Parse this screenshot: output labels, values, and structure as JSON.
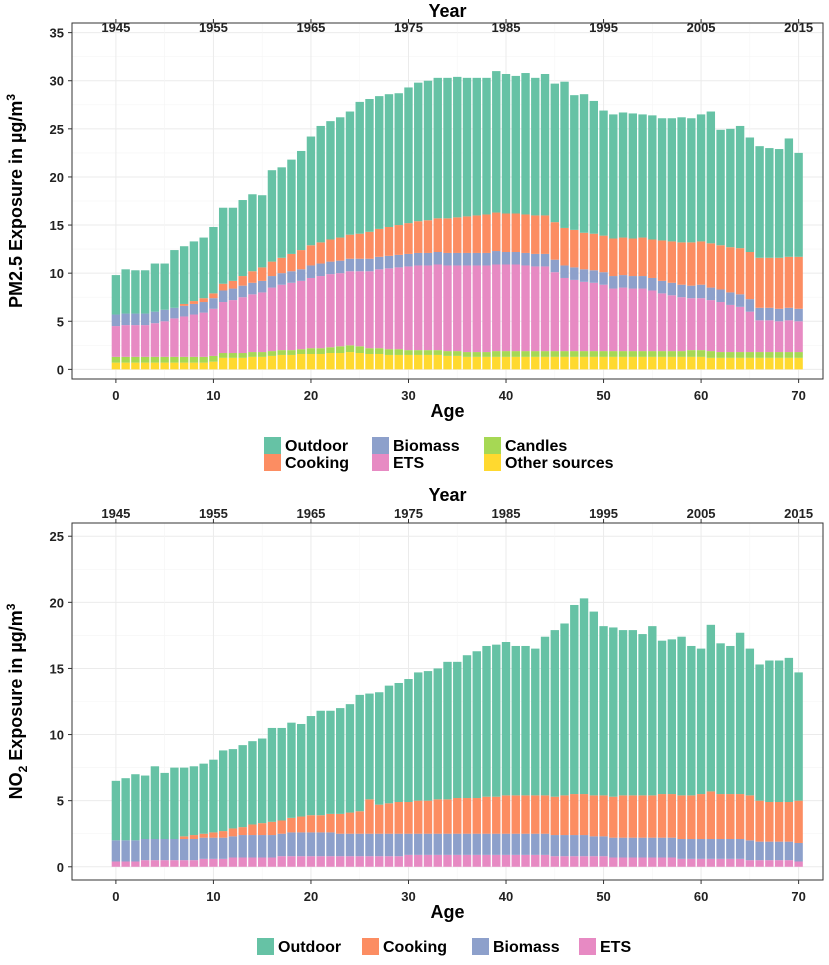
{
  "legend_pm25": [
    {
      "label": "Outdoor",
      "color": "#66C2A5"
    },
    {
      "label": "Cooking",
      "color": "#FC8D62"
    },
    {
      "label": "Biomass",
      "color": "#8DA0CB"
    },
    {
      "label": "ETS",
      "color": "#E78AC3"
    },
    {
      "label": "Candles",
      "color": "#A6D854"
    },
    {
      "label": "Other sources",
      "color": "#FFD92F"
    }
  ],
  "legend_no2": [
    {
      "label": "Outdoor",
      "color": "#66C2A5"
    },
    {
      "label": "Cooking",
      "color": "#FC8D62"
    },
    {
      "label": "Biomass",
      "color": "#8DA0CB"
    },
    {
      "label": "ETS",
      "color": "#E78AC3"
    }
  ],
  "chart_data": [
    {
      "type": "bar",
      "stacked": true,
      "title": "",
      "xlabel": "Age",
      "ylabel": "PM2.5 Exposure in µg/m3",
      "ylabel_prefix": "PM2.5 Exposure in µg/m",
      "ylabel_sup": "3",
      "xlabel_top": "Year",
      "x": [
        0,
        1,
        2,
        3,
        4,
        5,
        6,
        7,
        8,
        9,
        10,
        11,
        12,
        13,
        14,
        15,
        16,
        17,
        18,
        19,
        20,
        21,
        22,
        23,
        24,
        25,
        26,
        27,
        28,
        29,
        30,
        31,
        32,
        33,
        34,
        35,
        36,
        37,
        38,
        39,
        40,
        41,
        42,
        43,
        44,
        45,
        46,
        47,
        48,
        49,
        50,
        51,
        52,
        53,
        54,
        55,
        56,
        57,
        58,
        59,
        60,
        61,
        62,
        63,
        64,
        65,
        66,
        67,
        68,
        69,
        70
      ],
      "x_ticks": [
        0,
        10,
        20,
        30,
        40,
        50,
        60,
        70
      ],
      "top_ticks": [
        "1945",
        "1955",
        "1965",
        "1975",
        "1985",
        "1995",
        "2005",
        "2015"
      ],
      "ylim": [
        -1,
        36
      ],
      "y_ticks": [
        0,
        5,
        10,
        15,
        20,
        25,
        30,
        35
      ],
      "series": [
        {
          "name": "Other sources",
          "values": [
            0.7,
            0.7,
            0.7,
            0.7,
            0.7,
            0.7,
            0.7,
            0.7,
            0.7,
            0.7,
            0.8,
            1.2,
            1.2,
            1.2,
            1.3,
            1.3,
            1.4,
            1.5,
            1.5,
            1.6,
            1.6,
            1.6,
            1.7,
            1.7,
            1.8,
            1.7,
            1.6,
            1.6,
            1.5,
            1.5,
            1.5,
            1.5,
            1.5,
            1.5,
            1.4,
            1.4,
            1.3,
            1.3,
            1.3,
            1.3,
            1.3,
            1.3,
            1.3,
            1.3,
            1.3,
            1.3,
            1.3,
            1.3,
            1.3,
            1.3,
            1.3,
            1.3,
            1.3,
            1.3,
            1.3,
            1.3,
            1.3,
            1.3,
            1.3,
            1.3,
            1.3,
            1.2,
            1.2,
            1.2,
            1.2,
            1.2,
            1.2,
            1.2,
            1.2,
            1.2,
            1.2
          ]
        },
        {
          "name": "Candles",
          "values": [
            0.6,
            0.6,
            0.6,
            0.6,
            0.6,
            0.6,
            0.6,
            0.6,
            0.6,
            0.6,
            0.6,
            0.5,
            0.5,
            0.5,
            0.5,
            0.5,
            0.5,
            0.5,
            0.5,
            0.5,
            0.6,
            0.6,
            0.6,
            0.7,
            0.7,
            0.7,
            0.6,
            0.6,
            0.6,
            0.6,
            0.5,
            0.5,
            0.5,
            0.5,
            0.5,
            0.5,
            0.5,
            0.5,
            0.5,
            0.6,
            0.6,
            0.6,
            0.6,
            0.6,
            0.6,
            0.6,
            0.6,
            0.6,
            0.6,
            0.6,
            0.6,
            0.6,
            0.6,
            0.6,
            0.6,
            0.6,
            0.6,
            0.6,
            0.6,
            0.7,
            0.7,
            0.7,
            0.6,
            0.6,
            0.6,
            0.6,
            0.6,
            0.6,
            0.6,
            0.6,
            0.6
          ]
        },
        {
          "name": "ETS",
          "values": [
            3.2,
            3.3,
            3.3,
            3.3,
            3.5,
            3.7,
            4.0,
            4.2,
            4.4,
            4.6,
            4.9,
            5.3,
            5.5,
            5.8,
            6.0,
            6.2,
            6.6,
            6.8,
            7.0,
            7.1,
            7.3,
            7.5,
            7.6,
            7.6,
            7.7,
            7.8,
            8.0,
            8.2,
            8.4,
            8.5,
            8.7,
            8.8,
            8.8,
            8.9,
            8.9,
            8.9,
            9.0,
            9.0,
            9.0,
            9.0,
            9.0,
            9.0,
            8.9,
            8.8,
            8.8,
            8.2,
            7.6,
            7.4,
            7.2,
            7.1,
            6.9,
            6.5,
            6.6,
            6.5,
            6.5,
            6.3,
            6.0,
            5.8,
            5.6,
            5.4,
            5.4,
            5.3,
            5.2,
            4.9,
            4.7,
            4.2,
            3.3,
            3.3,
            3.2,
            3.3,
            3.2
          ]
        },
        {
          "name": "Biomass",
          "values": [
            1.2,
            1.2,
            1.2,
            1.2,
            1.2,
            1.2,
            1.1,
            1.1,
            1.1,
            1.1,
            1.1,
            1.2,
            1.2,
            1.2,
            1.2,
            1.2,
            1.2,
            1.2,
            1.2,
            1.2,
            1.3,
            1.3,
            1.3,
            1.3,
            1.3,
            1.3,
            1.3,
            1.3,
            1.3,
            1.3,
            1.3,
            1.3,
            1.3,
            1.3,
            1.3,
            1.3,
            1.3,
            1.3,
            1.3,
            1.4,
            1.3,
            1.3,
            1.3,
            1.3,
            1.3,
            1.3,
            1.3,
            1.3,
            1.3,
            1.3,
            1.3,
            1.3,
            1.3,
            1.3,
            1.3,
            1.3,
            1.3,
            1.3,
            1.3,
            1.3,
            1.4,
            1.3,
            1.3,
            1.3,
            1.3,
            1.3,
            1.3,
            1.3,
            1.3,
            1.3,
            1.3
          ]
        },
        {
          "name": "Cooking",
          "values": [
            0,
            0,
            0,
            0,
            0,
            0,
            0,
            0.2,
            0.3,
            0.4,
            0.5,
            0.7,
            0.8,
            1.0,
            1.2,
            1.4,
            1.5,
            1.6,
            1.8,
            2.0,
            2.1,
            2.2,
            2.3,
            2.4,
            2.5,
            2.6,
            2.8,
            2.9,
            3.0,
            3.1,
            3.2,
            3.3,
            3.4,
            3.5,
            3.6,
            3.7,
            3.8,
            3.9,
            4.0,
            4.0,
            4.0,
            4.0,
            4.0,
            4.0,
            4.0,
            3.9,
            3.9,
            3.9,
            3.8,
            3.8,
            3.8,
            3.9,
            3.9,
            3.9,
            4.0,
            4.0,
            4.2,
            4.3,
            4.4,
            4.5,
            4.5,
            4.6,
            4.6,
            4.7,
            4.8,
            4.9,
            5.2,
            5.2,
            5.3,
            5.3,
            5.4
          ]
        },
        {
          "name": "Outdoor",
          "values": [
            4.1,
            4.6,
            4.5,
            4.5,
            5.0,
            4.8,
            6.0,
            6.0,
            6.2,
            6.3,
            6.9,
            7.9,
            7.6,
            7.9,
            8.0,
            7.5,
            9.5,
            9.4,
            9.8,
            10.3,
            11.3,
            12.1,
            12.3,
            12.5,
            12.8,
            13.7,
            13.8,
            13.8,
            13.8,
            13.7,
            14.1,
            14.4,
            14.5,
            14.6,
            14.6,
            14.6,
            14.4,
            14.3,
            14.2,
            14.7,
            14.5,
            14.3,
            14.7,
            14.3,
            14.7,
            14.4,
            15.2,
            14.0,
            14.4,
            13.8,
            13.0,
            12.9,
            13.0,
            13.0,
            12.8,
            12.9,
            12.7,
            12.8,
            13.0,
            12.9,
            13.2,
            13.7,
            12.0,
            12.3,
            12.7,
            11.9,
            11.6,
            11.4,
            11.3,
            12.3,
            10.8
          ]
        }
      ]
    },
    {
      "type": "bar",
      "stacked": true,
      "title": "",
      "xlabel": "Age",
      "ylabel": "NO2 Exposure in µg/m3",
      "ylabel_p1": "NO",
      "ylabel_sub": "2",
      "ylabel_p2": " Exposure in µg/m",
      "ylabel_sup": "3",
      "xlabel_top": "Year",
      "x": [
        0,
        1,
        2,
        3,
        4,
        5,
        6,
        7,
        8,
        9,
        10,
        11,
        12,
        13,
        14,
        15,
        16,
        17,
        18,
        19,
        20,
        21,
        22,
        23,
        24,
        25,
        26,
        27,
        28,
        29,
        30,
        31,
        32,
        33,
        34,
        35,
        36,
        37,
        38,
        39,
        40,
        41,
        42,
        43,
        44,
        45,
        46,
        47,
        48,
        49,
        50,
        51,
        52,
        53,
        54,
        55,
        56,
        57,
        58,
        59,
        60,
        61,
        62,
        63,
        64,
        65,
        66,
        67,
        68,
        69,
        70
      ],
      "x_ticks": [
        0,
        10,
        20,
        30,
        40,
        50,
        60,
        70
      ],
      "top_ticks": [
        "1945",
        "1955",
        "1965",
        "1975",
        "1985",
        "1995",
        "2005",
        "2015"
      ],
      "ylim": [
        -1,
        26
      ],
      "y_ticks": [
        0,
        5,
        10,
        15,
        20,
        25
      ],
      "series": [
        {
          "name": "ETS",
          "values": [
            0.4,
            0.4,
            0.4,
            0.5,
            0.5,
            0.5,
            0.5,
            0.5,
            0.5,
            0.6,
            0.6,
            0.6,
            0.7,
            0.7,
            0.7,
            0.7,
            0.7,
            0.8,
            0.8,
            0.8,
            0.8,
            0.8,
            0.8,
            0.8,
            0.8,
            0.8,
            0.8,
            0.8,
            0.8,
            0.8,
            0.9,
            0.9,
            0.9,
            0.9,
            0.9,
            0.9,
            0.9,
            0.9,
            0.9,
            0.9,
            0.9,
            0.9,
            0.9,
            0.9,
            0.9,
            0.8,
            0.8,
            0.8,
            0.8,
            0.8,
            0.8,
            0.7,
            0.7,
            0.7,
            0.7,
            0.7,
            0.7,
            0.7,
            0.6,
            0.6,
            0.6,
            0.6,
            0.6,
            0.6,
            0.6,
            0.5,
            0.5,
            0.5,
            0.5,
            0.5,
            0.4
          ]
        },
        {
          "name": "Biomass",
          "values": [
            1.6,
            1.6,
            1.6,
            1.6,
            1.6,
            1.6,
            1.6,
            1.6,
            1.6,
            1.6,
            1.6,
            1.6,
            1.6,
            1.7,
            1.7,
            1.7,
            1.7,
            1.7,
            1.8,
            1.8,
            1.8,
            1.8,
            1.8,
            1.7,
            1.7,
            1.7,
            1.7,
            1.7,
            1.7,
            1.7,
            1.6,
            1.6,
            1.6,
            1.6,
            1.6,
            1.6,
            1.6,
            1.6,
            1.6,
            1.6,
            1.6,
            1.6,
            1.6,
            1.6,
            1.6,
            1.6,
            1.6,
            1.6,
            1.6,
            1.5,
            1.5,
            1.5,
            1.5,
            1.5,
            1.5,
            1.5,
            1.5,
            1.5,
            1.5,
            1.5,
            1.5,
            1.5,
            1.5,
            1.5,
            1.5,
            1.5,
            1.4,
            1.4,
            1.4,
            1.4,
            1.4
          ]
        },
        {
          "name": "Cooking",
          "values": [
            0,
            0,
            0,
            0,
            0,
            0,
            0,
            0.2,
            0.3,
            0.3,
            0.4,
            0.5,
            0.6,
            0.6,
            0.8,
            0.9,
            1.0,
            1.0,
            1.1,
            1.2,
            1.3,
            1.3,
            1.4,
            1.5,
            1.6,
            1.7,
            2.6,
            2.2,
            2.3,
            2.4,
            2.4,
            2.5,
            2.5,
            2.6,
            2.6,
            2.7,
            2.7,
            2.7,
            2.8,
            2.8,
            2.9,
            2.9,
            2.9,
            2.9,
            2.9,
            2.9,
            3.0,
            3.1,
            3.1,
            3.1,
            3.1,
            3.1,
            3.2,
            3.2,
            3.2,
            3.2,
            3.3,
            3.3,
            3.3,
            3.3,
            3.4,
            3.6,
            3.4,
            3.4,
            3.4,
            3.4,
            3.1,
            3.0,
            3.0,
            3.0,
            3.2
          ]
        },
        {
          "name": "Outdoor",
          "values": [
            4.5,
            4.7,
            5.0,
            4.8,
            5.5,
            5.0,
            5.4,
            5.2,
            5.2,
            5.3,
            5.5,
            6.1,
            6.0,
            6.2,
            6.3,
            6.4,
            7.1,
            7.0,
            7.2,
            7.0,
            7.5,
            7.9,
            7.8,
            8.0,
            8.2,
            8.8,
            8.0,
            8.5,
            8.9,
            9.0,
            9.3,
            9.7,
            9.8,
            9.9,
            10.4,
            10.3,
            10.8,
            11.1,
            11.4,
            11.5,
            11.6,
            11.3,
            11.3,
            11.1,
            12.0,
            12.6,
            13.0,
            14.3,
            14.8,
            13.9,
            12.8,
            12.8,
            12.5,
            12.5,
            12.2,
            12.8,
            11.6,
            11.7,
            12.0,
            11.3,
            11.0,
            12.6,
            11.4,
            11.2,
            12.2,
            11.1,
            10.3,
            10.7,
            10.7,
            10.9,
            9.7
          ]
        }
      ]
    }
  ]
}
